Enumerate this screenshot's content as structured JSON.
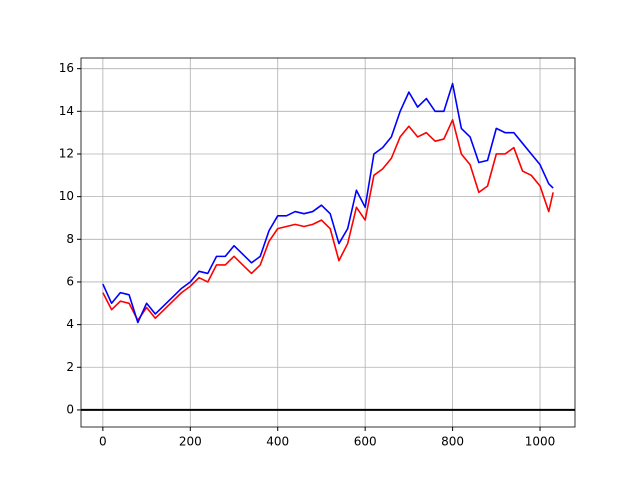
{
  "chart_data": {
    "type": "line",
    "x": [
      0,
      20,
      40,
      60,
      80,
      100,
      120,
      140,
      160,
      180,
      200,
      220,
      240,
      260,
      280,
      300,
      320,
      340,
      360,
      380,
      400,
      420,
      440,
      460,
      480,
      500,
      520,
      540,
      560,
      580,
      600,
      620,
      640,
      660,
      680,
      700,
      720,
      740,
      760,
      780,
      800,
      820,
      840,
      860,
      880,
      900,
      920,
      940,
      960,
      980,
      1000,
      1020,
      1030
    ],
    "series": [
      {
        "color": "#ff0000",
        "values": [
          5.5,
          4.7,
          5.1,
          5.0,
          4.2,
          4.8,
          4.3,
          4.7,
          5.1,
          5.5,
          5.8,
          6.2,
          6.0,
          6.8,
          6.8,
          7.2,
          6.8,
          6.4,
          6.8,
          7.9,
          8.5,
          8.6,
          8.7,
          8.6,
          8.7,
          8.9,
          8.5,
          7.0,
          7.8,
          9.5,
          8.9,
          11.0,
          11.3,
          11.8,
          12.8,
          13.3,
          12.8,
          13.0,
          12.6,
          12.7,
          13.6,
          12.0,
          11.5,
          10.2,
          10.5,
          12.0,
          12.0,
          12.3,
          11.2,
          11.0,
          10.5,
          9.3,
          10.2
        ]
      },
      {
        "color": "#0000ff",
        "values": [
          5.9,
          5.0,
          5.5,
          5.4,
          4.1,
          5.0,
          4.5,
          4.9,
          5.3,
          5.7,
          6.0,
          6.5,
          6.4,
          7.2,
          7.2,
          7.7,
          7.3,
          6.9,
          7.2,
          8.4,
          9.1,
          9.1,
          9.3,
          9.2,
          9.3,
          9.6,
          9.2,
          7.8,
          8.5,
          10.3,
          9.5,
          12.0,
          12.3,
          12.8,
          14.0,
          14.9,
          14.2,
          14.6,
          14.0,
          14.0,
          15.3,
          13.2,
          12.8,
          11.6,
          11.7,
          13.2,
          13.0,
          13.0,
          12.5,
          12.0,
          11.5,
          10.6,
          10.4
        ]
      }
    ],
    "xlim": [
      -50,
      1080
    ],
    "ylim": [
      -0.8,
      16.5
    ],
    "xticks": [
      0,
      200,
      400,
      600,
      800,
      1000
    ],
    "yticks": [
      0,
      2,
      4,
      6,
      8,
      10,
      12,
      14,
      16
    ],
    "grid": true,
    "reference_line": 0
  }
}
